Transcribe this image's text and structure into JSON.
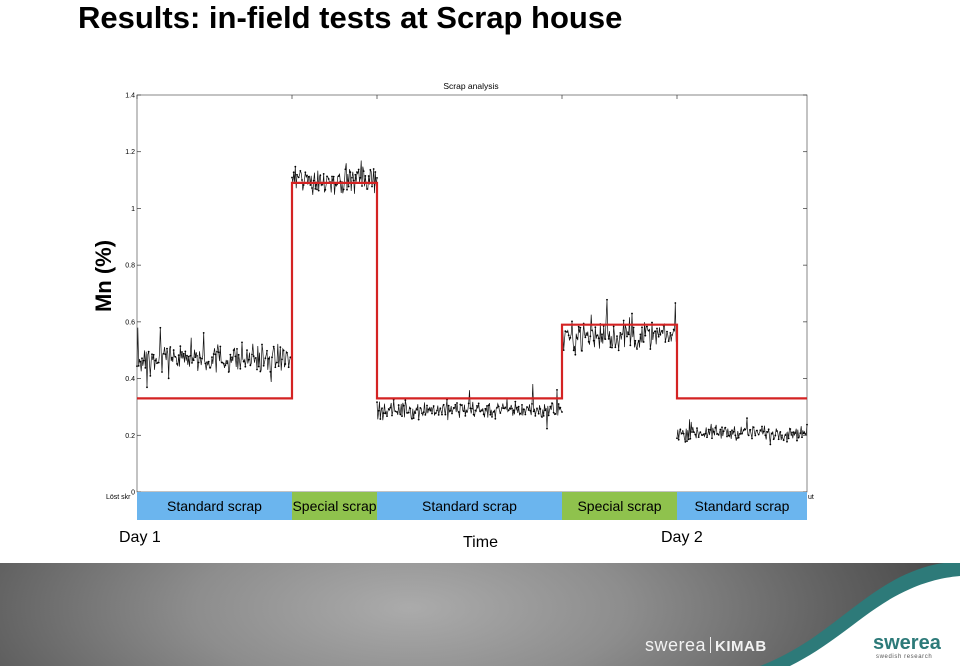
{
  "slide": {
    "title": "Results: in-field tests at Scrap house",
    "ylabel": "Mn (%)",
    "xlabel": "Time",
    "day1": "Day 1",
    "day2": "Day 2"
  },
  "footer": {
    "logo_left_brand": "swerea",
    "logo_left_unit": "KIMAB",
    "logo_right_brand": "swerea",
    "logo_right_tagline": "swedish research"
  },
  "colors": {
    "standard_band": "#6bb5ee",
    "special_band": "#8fc24d",
    "red_line": "#d42323",
    "gray_band": "#b9b9b9",
    "teal": "#2d7a79"
  },
  "chart_data": {
    "type": "line",
    "title": "Scrap analysis",
    "ylim": [
      0,
      1.4
    ],
    "yticks": [
      0,
      0.2,
      0.4,
      0.6,
      0.8,
      1,
      1.2,
      1.4
    ],
    "ytick_labels": [
      "0",
      "0.2",
      "0.4",
      "0.6",
      "0.8",
      "1",
      "1.2",
      "1.4"
    ],
    "xlim": [
      0,
      670
    ],
    "x_tick_left_label": "Löst skr",
    "x_tick_right_label": "ut",
    "grid": false,
    "segments": [
      {
        "label": "Standard scrap",
        "kind": "standard",
        "x_start": 0,
        "x_end": 155,
        "red_level": 0.33,
        "mean": 0.47,
        "band_low": 0.41,
        "band_high": 0.53,
        "spread": 0.05
      },
      {
        "label": "Special scrap",
        "kind": "special",
        "x_start": 155,
        "x_end": 240,
        "red_level": 1.09,
        "mean": 1.1,
        "band_low": 1.02,
        "band_high": 1.16,
        "spread": 0.05
      },
      {
        "label": "Standard scrap",
        "kind": "standard",
        "x_start": 240,
        "x_end": 425,
        "red_level": 0.33,
        "mean": 0.29,
        "band_low": 0.25,
        "band_high": 0.33,
        "spread": 0.03
      },
      {
        "label": "Special scrap",
        "kind": "special",
        "x_start": 425,
        "x_end": 540,
        "red_level": 0.59,
        "mean": 0.55,
        "band_low": 0.49,
        "band_high": 0.62,
        "spread": 0.05
      },
      {
        "label": "Standard scrap",
        "kind": "standard",
        "x_start": 540,
        "x_end": 670,
        "red_level": 0.33,
        "mean": 0.21,
        "band_low": 0.18,
        "band_high": 0.24,
        "spread": 0.025
      }
    ]
  }
}
